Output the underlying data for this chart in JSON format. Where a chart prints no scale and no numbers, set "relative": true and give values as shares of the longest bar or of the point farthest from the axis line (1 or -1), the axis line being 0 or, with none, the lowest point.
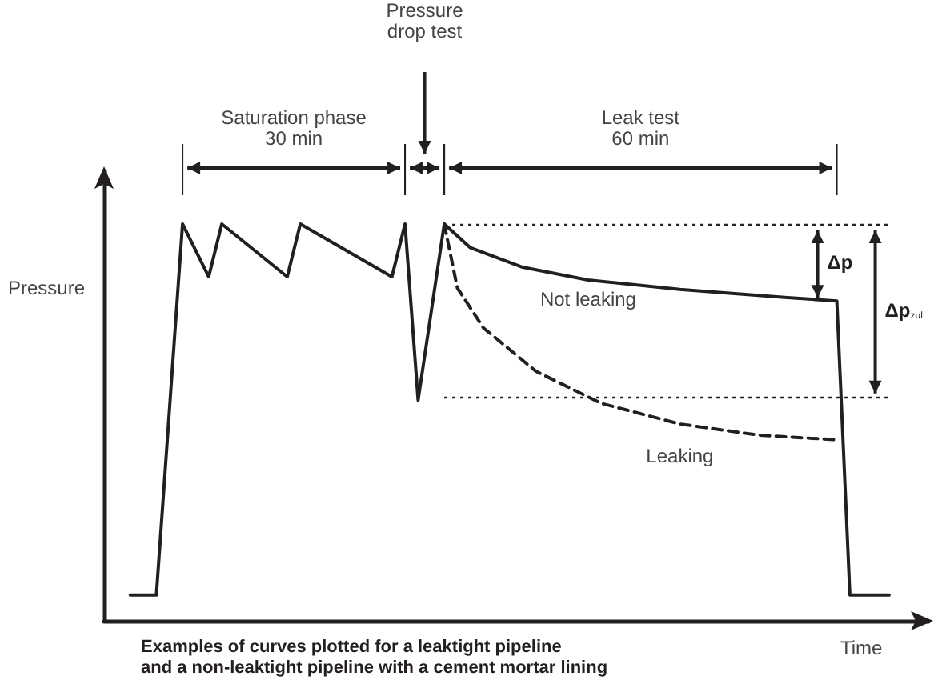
{
  "chart_data": {
    "type": "line",
    "relative": true,
    "title": "Examples of curves plotted for a leaktight pipeline\nand a non-leaktight pipeline with a cement mortar lining",
    "xlabel": "Time",
    "ylabel": "Pressure",
    "tick_labels": false,
    "grid": false,
    "legend": false,
    "marker": "none",
    "categories": [
      null,
      null,
      null,
      null,
      null,
      null,
      null,
      null,
      null,
      null,
      null,
      null,
      null,
      null,
      null,
      null,
      null,
      null,
      null,
      null,
      null,
      null,
      null,
      null,
      null,
      null,
      null,
      null,
      null,
      null,
      null,
      null,
      null,
      null,
      null,
      null,
      null,
      null,
      null,
      null,
      null,
      null,
      null,
      null,
      null,
      null,
      null,
      null,
      null,
      null,
      null,
      null,
      null,
      null,
      null,
      null,
      null,
      null,
      null,
      null,
      null,
      null,
      null,
      null
    ],
    "series": [
      {
        "name": "Not leaking",
        "color": "#231f20",
        "line_style": "solid",
        "values": [
          null,
          null,
          0.065,
          null,
          0.065,
          null,
          1,
          null,
          0.867,
          1,
          null,
          null,
          null,
          null,
          0.867,
          1,
          null,
          null,
          null,
          null,
          null,
          null,
          0.867,
          1,
          0.556,
          null,
          1,
          null,
          0.94,
          null,
          null,
          null,
          0.891,
          null,
          null,
          null,
          null,
          0.859,
          null,
          null,
          null,
          null,
          null,
          null,
          0.835,
          null,
          null,
          null,
          null,
          null,
          null,
          null,
          0.815,
          null,
          null,
          null,
          0.806,
          0.065,
          null,
          null,
          0.065,
          null,
          null,
          null
        ]
      },
      {
        "name": "Leaking",
        "color": "#231f20",
        "line_style": "dashed",
        "values": [
          null,
          null,
          null,
          null,
          null,
          null,
          null,
          null,
          null,
          null,
          null,
          null,
          null,
          null,
          null,
          null,
          null,
          null,
          null,
          null,
          null,
          null,
          null,
          null,
          null,
          null,
          1,
          0.839,
          null,
          0.738,
          null,
          null,
          null,
          0.629,
          null,
          null,
          null,
          null,
          0.548,
          null,
          null,
          null,
          null,
          null,
          0.496,
          null,
          null,
          null,
          null,
          null,
          0.468,
          null,
          null,
          null,
          null,
          null,
          0.456,
          null,
          null,
          null,
          null,
          null,
          null,
          null
        ]
      }
    ],
    "ref_lines": [
      {
        "axis": "y",
        "value": 1,
        "line_style": "dotted",
        "color": "#231f20"
      },
      {
        "axis": "y",
        "value": 0.565,
        "line_style": "dotted",
        "color": "#231f20"
      }
    ],
    "annotations": [
      "Saturation phase\n30 min",
      "Pressure\ndrop test",
      "Leak test\n60 min",
      "Δp",
      "Δp$_{zul}$"
    ]
  }
}
